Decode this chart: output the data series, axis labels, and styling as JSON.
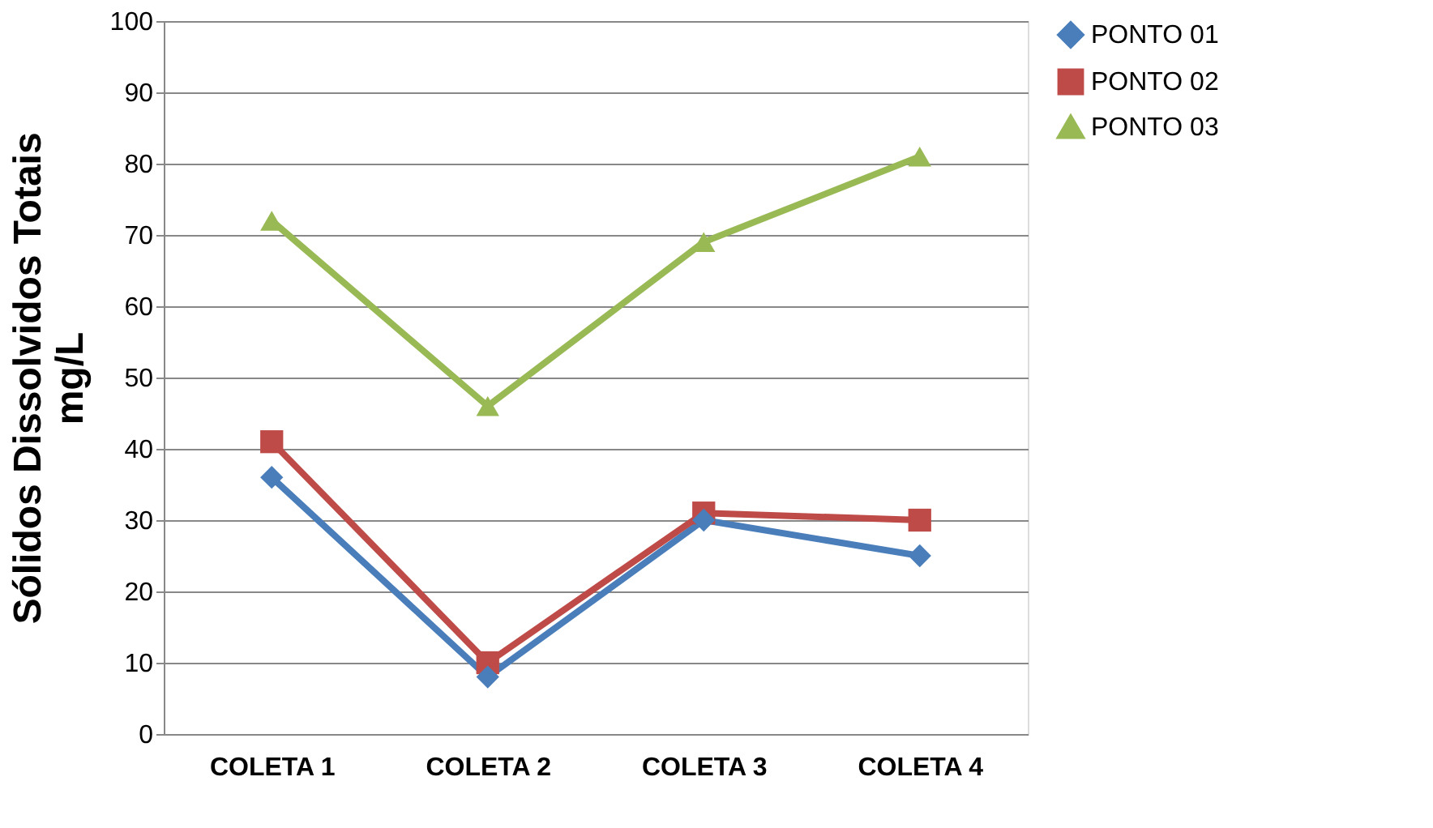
{
  "chart_data": {
    "type": "line",
    "ylabel": "Sólidos Dissolvidos Totais\nmg/L",
    "categories": [
      "COLETA 1",
      "COLETA 2",
      "COLETA 3",
      "COLETA 4"
    ],
    "series": [
      {
        "name": "PONTO 01",
        "color": "#4a7ebb",
        "marker": "diamond",
        "values": [
          36,
          8,
          30,
          25
        ]
      },
      {
        "name": "PONTO 02",
        "color": "#be4b48",
        "marker": "square",
        "values": [
          41,
          10,
          31,
          30
        ]
      },
      {
        "name": "PONTO 03",
        "color": "#98b954",
        "marker": "triangle",
        "values": [
          72,
          46,
          69,
          81
        ]
      }
    ],
    "ylim": [
      0,
      100
    ],
    "yticks": [
      0,
      10,
      20,
      30,
      40,
      50,
      60,
      70,
      80,
      90,
      100
    ],
    "grid": "y",
    "legend": "right",
    "line_style": "solid"
  }
}
